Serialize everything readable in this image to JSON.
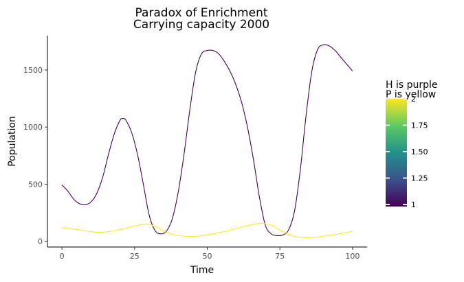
{
  "chart_data": {
    "type": "line",
    "title": "Paradox of Enrichment",
    "subtitle": "Carrying capacity 2000",
    "xlabel": "Time",
    "ylabel": "Population",
    "xlim": [
      -5,
      105
    ],
    "ylim": [
      -50,
      1800
    ],
    "x_ticks": [
      0,
      25,
      50,
      75,
      100
    ],
    "y_ticks": [
      0,
      500,
      1000,
      1500
    ],
    "grid": false,
    "legend": {
      "title_line1": "H is purple",
      "title_line2": "P is yellow",
      "placement": "right",
      "type": "colorbar",
      "range": [
        1,
        2
      ],
      "ticks": [
        "1",
        "1.25",
        "1.50",
        "1.75",
        "2"
      ],
      "colors": [
        "#440154",
        "#3b528b",
        "#21918c",
        "#5ec962",
        "#fde725"
      ]
    },
    "series": [
      {
        "color": "#440154",
        "x": [
          0,
          2,
          4,
          6,
          8,
          10,
          12,
          14,
          16,
          18,
          20,
          21,
          22,
          24,
          26,
          28,
          30,
          32,
          34,
          36,
          38,
          40,
          42,
          44,
          46,
          48,
          50,
          52,
          54,
          56,
          58,
          60,
          62,
          64,
          66,
          68,
          70,
          72,
          74,
          76,
          78,
          80,
          82,
          84,
          86,
          88,
          90,
          92,
          94,
          96,
          98,
          100
        ],
        "values": [
          495,
          440,
          370,
          330,
          320,
          345,
          420,
          560,
          760,
          940,
          1060,
          1075,
          1060,
          950,
          760,
          500,
          230,
          95,
          65,
          90,
          200,
          430,
          760,
          1150,
          1480,
          1640,
          1670,
          1670,
          1640,
          1570,
          1480,
          1360,
          1200,
          980,
          700,
          380,
          140,
          65,
          50,
          55,
          100,
          260,
          620,
          1100,
          1490,
          1680,
          1720,
          1710,
          1670,
          1610,
          1550,
          1490
        ]
      },
      {
        "color": "#fde725",
        "x": [
          0,
          3,
          6,
          9,
          12,
          15,
          18,
          21,
          24,
          27,
          30,
          33,
          36,
          39,
          42,
          45,
          48,
          51,
          54,
          57,
          60,
          63,
          66,
          69,
          72,
          75,
          78,
          81,
          84,
          87,
          90,
          93,
          96,
          100
        ],
        "values": [
          120,
          112,
          100,
          88,
          80,
          82,
          92,
          108,
          128,
          145,
          148,
          118,
          80,
          55,
          45,
          42,
          48,
          60,
          75,
          92,
          112,
          132,
          148,
          158,
          140,
          100,
          60,
          38,
          32,
          35,
          45,
          55,
          68,
          88
        ]
      }
    ]
  }
}
